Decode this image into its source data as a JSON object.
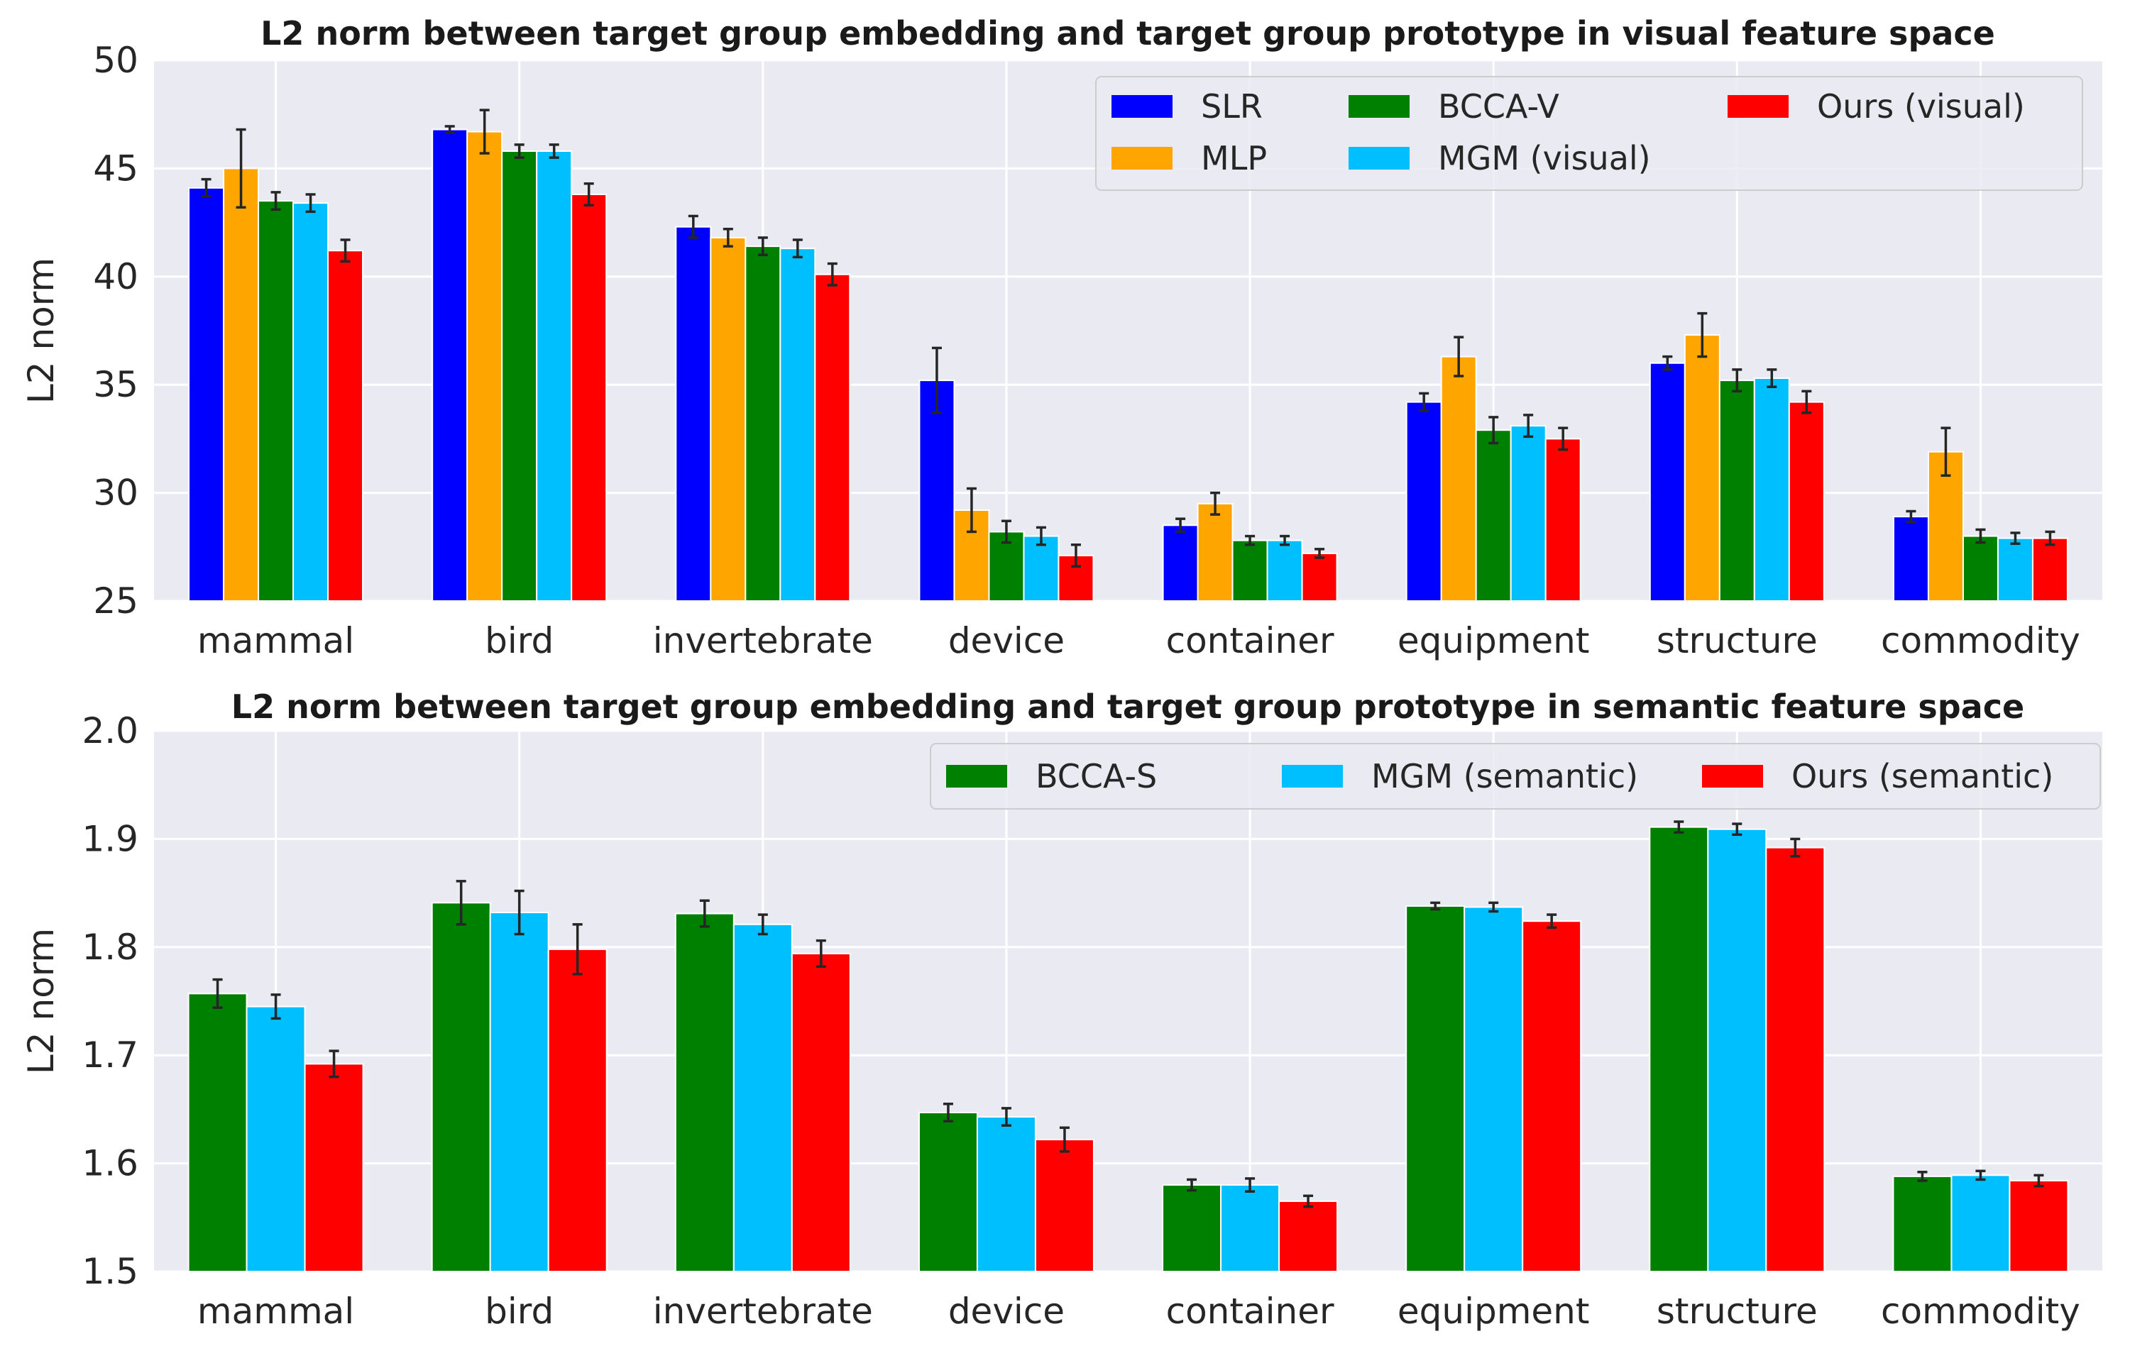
{
  "chart_data": [
    {
      "type": "bar",
      "title": "L2 norm between target group embedding and target group prototype in visual feature space",
      "xlabel": "",
      "ylabel": "L2 norm",
      "ylim": [
        25,
        50
      ],
      "yticks": [
        25,
        30,
        35,
        40,
        45,
        50
      ],
      "grid": true,
      "legend_position": "top-right",
      "categories": [
        "mammal",
        "bird",
        "invertebrate",
        "device",
        "container",
        "equipment",
        "structure",
        "commodity"
      ],
      "series": [
        {
          "name": "SLR",
          "color": "#0000ff",
          "values": [
            44.1,
            46.8,
            42.3,
            35.2,
            28.5,
            34.2,
            36.0,
            28.9
          ],
          "errors": [
            0.4,
            0.15,
            0.5,
            1.5,
            0.3,
            0.4,
            0.3,
            0.25
          ]
        },
        {
          "name": "MLP",
          "color": "#ffa500",
          "values": [
            45.0,
            46.7,
            41.8,
            29.2,
            29.5,
            36.3,
            37.3,
            31.9
          ],
          "errors": [
            1.8,
            1.0,
            0.4,
            1.0,
            0.5,
            0.9,
            1.0,
            1.1
          ]
        },
        {
          "name": "BCCA-V",
          "color": "#008000",
          "values": [
            43.5,
            45.8,
            41.4,
            28.2,
            27.8,
            32.9,
            35.2,
            28.0
          ],
          "errors": [
            0.4,
            0.3,
            0.4,
            0.5,
            0.2,
            0.6,
            0.5,
            0.3
          ]
        },
        {
          "name": "MGM (visual)",
          "color": "#00bfff",
          "values": [
            43.4,
            45.8,
            41.3,
            28.0,
            27.8,
            33.1,
            35.3,
            27.9
          ],
          "errors": [
            0.4,
            0.3,
            0.4,
            0.4,
            0.2,
            0.5,
            0.4,
            0.25
          ]
        },
        {
          "name": "Ours (visual)",
          "color": "#ff0000",
          "values": [
            41.2,
            43.8,
            40.1,
            27.1,
            27.2,
            32.5,
            34.2,
            27.9
          ],
          "errors": [
            0.5,
            0.5,
            0.5,
            0.5,
            0.2,
            0.5,
            0.5,
            0.3
          ]
        }
      ]
    },
    {
      "type": "bar",
      "title": "L2 norm between target group embedding and target group prototype in semantic feature space",
      "xlabel": "",
      "ylabel": "L2 norm",
      "ylim": [
        1.5,
        2.0
      ],
      "yticks": [
        "1.5",
        "1.6",
        "1.7",
        "1.8",
        "1.9",
        "2.0"
      ],
      "grid": true,
      "legend_position": "top-right",
      "categories": [
        "mammal",
        "bird",
        "invertebrate",
        "device",
        "container",
        "equipment",
        "structure",
        "commodity"
      ],
      "series": [
        {
          "name": "BCCA-S",
          "color": "#008000",
          "values": [
            1.757,
            1.841,
            1.831,
            1.647,
            1.58,
            1.838,
            1.911,
            1.588
          ],
          "errors": [
            0.013,
            0.02,
            0.012,
            0.008,
            0.005,
            0.003,
            0.005,
            0.004
          ]
        },
        {
          "name": "MGM (semantic)",
          "color": "#00bfff",
          "values": [
            1.745,
            1.832,
            1.821,
            1.643,
            1.58,
            1.837,
            1.909,
            1.589
          ],
          "errors": [
            0.011,
            0.02,
            0.009,
            0.008,
            0.006,
            0.004,
            0.005,
            0.004
          ]
        },
        {
          "name": "Ours (semantic)",
          "color": "#ff0000",
          "values": [
            1.692,
            1.798,
            1.794,
            1.622,
            1.565,
            1.824,
            1.892,
            1.584
          ],
          "errors": [
            0.012,
            0.023,
            0.012,
            0.011,
            0.005,
            0.006,
            0.008,
            0.005
          ]
        }
      ]
    }
  ]
}
